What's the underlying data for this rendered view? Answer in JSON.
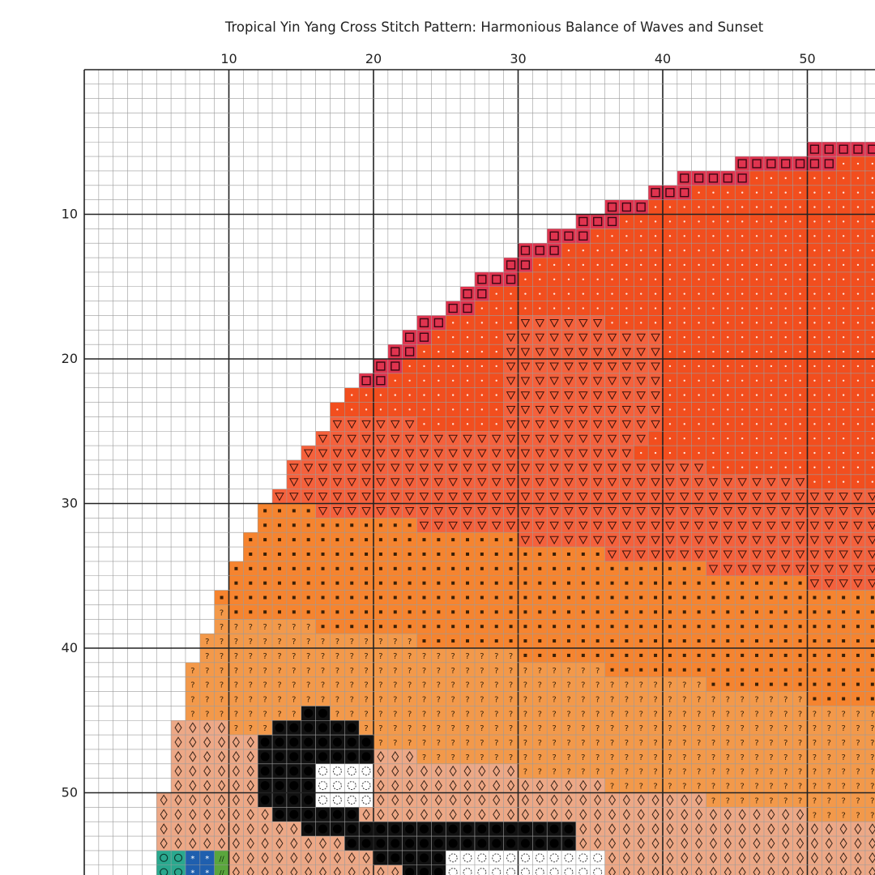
{
  "title": "Tropical Yin Yang Cross Stitch Pattern: Harmonious Balance of Waves and Sunset",
  "column_labels": [
    "10",
    "20",
    "30",
    "40",
    "50"
  ],
  "row_labels": [
    "10",
    "20",
    "30",
    "40",
    "50"
  ],
  "palette": {
    "background": "#ffffff",
    "grid_minor": "#9a9a9a",
    "grid_major": "#222222",
    "crimson": "#e0344f",
    "red_orange": "#f24e1e",
    "salmon": "#f5613c",
    "orange": "#f6842f",
    "light_orange": "#f3994a",
    "peach": "#eda886",
    "black": "#111111",
    "white": "#ffffff",
    "teal": "#2aa88e",
    "blue": "#1f5fae",
    "green": "#5aa63d"
  },
  "symbol_legend": [
    {
      "color": "crimson",
      "symbol": "square",
      "icon": "square-symbol-icon"
    },
    {
      "color": "red_orange",
      "symbol": "dot",
      "icon": "dot-symbol-icon"
    },
    {
      "color": "salmon",
      "symbol": "triangle-down",
      "icon": "triangle-symbol-icon"
    },
    {
      "color": "orange",
      "symbol": "dash",
      "icon": "dash-symbol-icon"
    },
    {
      "color": "light_orange",
      "symbol": "question",
      "icon": "question-symbol-icon"
    },
    {
      "color": "peach",
      "symbol": "diamond",
      "icon": "diamond-symbol-icon"
    },
    {
      "color": "black",
      "symbol": "filled-circle",
      "icon": "filled-circle-symbol-icon"
    },
    {
      "color": "white",
      "symbol": "open-circle",
      "icon": "open-circle-symbol-icon"
    },
    {
      "color": "teal",
      "symbol": "ring",
      "icon": "ring-symbol-icon"
    },
    {
      "color": "blue",
      "symbol": "star",
      "icon": "star-symbol-icon"
    },
    {
      "color": "green",
      "symbol": "slashes",
      "icon": "slashes-symbol-icon"
    }
  ]
}
